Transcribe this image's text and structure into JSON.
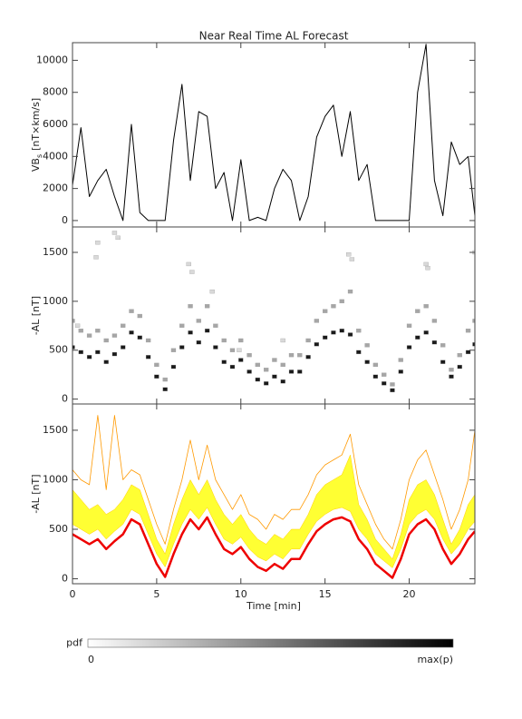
{
  "chart_data": [
    {
      "type": "line",
      "title": "Near Real Time AL Forecast",
      "ylabel": "VB",
      "ylabel_sub": "s",
      "ylabel_unit": "[nT×km/s]",
      "x": [
        0,
        0.5,
        1,
        1.5,
        2,
        2.5,
        3,
        3.5,
        4,
        4.5,
        5,
        5.5,
        6,
        6.5,
        7,
        7.5,
        8,
        8.5,
        9,
        9.5,
        10,
        10.5,
        11,
        11.5,
        12,
        12.5,
        13,
        13.5,
        14,
        14.5,
        15,
        15.5,
        16,
        16.5,
        17,
        17.5,
        18,
        18.5,
        19,
        19.5,
        20,
        20.5,
        21,
        21.5,
        22,
        22.5,
        23,
        23.5,
        23.9
      ],
      "series": [
        {
          "color": "#000000",
          "values": [
            2200,
            5800,
            1500,
            2500,
            3200,
            1500,
            0,
            6000,
            500,
            0,
            0,
            0,
            5000,
            8500,
            2500,
            6800,
            6500,
            2000,
            3000,
            0,
            3800,
            0,
            200,
            0,
            2000,
            3200,
            2500,
            0,
            1500,
            5200,
            6500,
            7200,
            4000,
            6800,
            2500,
            3500,
            0,
            0,
            0,
            0,
            0,
            8000,
            11000,
            2500,
            300,
            4900,
            3500,
            4000,
            300
          ]
        }
      ],
      "xlim": [
        0,
        23.9
      ],
      "xticks": [
        0,
        5,
        10,
        15,
        20
      ],
      "ylim": [
        -400,
        11100
      ],
      "yticks": [
        0,
        2000,
        4000,
        6000,
        8000,
        10000
      ]
    },
    {
      "type": "density",
      "ylabel": "-AL [nT]",
      "series": [
        {
          "p": 0.9,
          "x": [
            0,
            0.5,
            1,
            1.5,
            2,
            2.5,
            3,
            3.5,
            4,
            4.5,
            5,
            5.5,
            6,
            6.5,
            7,
            7.5,
            8,
            8.5,
            9,
            9.5,
            10,
            10.5,
            11,
            11.5,
            12,
            12.5,
            13,
            13.5,
            14,
            14.5,
            15,
            15.5,
            16,
            16.5,
            17,
            17.5,
            18,
            18.5,
            19,
            19.5,
            20,
            20.5,
            21,
            21.5,
            22,
            22.5,
            23,
            23.5,
            23.9
          ],
          "values": [
            530,
            480,
            430,
            480,
            380,
            460,
            530,
            680,
            630,
            430,
            230,
            100,
            330,
            530,
            680,
            580,
            700,
            530,
            380,
            330,
            400,
            280,
            200,
            160,
            230,
            180,
            280,
            280,
            430,
            560,
            630,
            680,
            700,
            660,
            480,
            380,
            230,
            160,
            90,
            280,
            530,
            630,
            680,
            580,
            380,
            230,
            330,
            480,
            560
          ]
        },
        {
          "p": 0.35,
          "x": [
            0,
            0.5,
            1,
            1.5,
            2,
            2.5,
            3,
            3.5,
            4,
            4.5,
            5,
            5.5,
            6,
            6.5,
            7,
            7.5,
            8,
            8.5,
            9,
            9.5,
            10,
            10.5,
            11,
            11.5,
            12,
            12.5,
            13,
            13.5,
            14,
            14.5,
            15,
            15.5,
            16,
            16.5,
            17,
            17.5,
            18,
            18.5,
            19,
            19.5,
            20,
            20.5,
            21,
            21.5,
            22,
            22.5,
            23,
            23.5,
            23.9
          ],
          "values": [
            800,
            700,
            650,
            700,
            600,
            650,
            750,
            900,
            850,
            600,
            350,
            200,
            500,
            750,
            950,
            800,
            950,
            750,
            600,
            500,
            600,
            450,
            350,
            300,
            400,
            350,
            450,
            450,
            600,
            800,
            900,
            950,
            1000,
            1100,
            700,
            550,
            350,
            250,
            150,
            400,
            750,
            900,
            950,
            800,
            550,
            300,
            450,
            700,
            800
          ]
        },
        {
          "p": 0.15,
          "x": [
            1.4,
            1.5,
            2.5,
            2.7,
            6.9,
            7.1,
            8.3,
            16.4,
            16.6,
            21.0,
            21.1,
            23.9,
            0.3,
            12.5,
            9.9
          ],
          "values": [
            1450,
            1600,
            1700,
            1650,
            1380,
            1300,
            1100,
            1480,
            1430,
            1380,
            1340,
            1500,
            750,
            600,
            500
          ]
        }
      ],
      "xlim": [
        0,
        23.9
      ],
      "xticks": [
        0,
        5,
        10,
        15,
        20
      ],
      "ylim": [
        -50,
        1760
      ],
      "yticks": [
        0,
        500,
        1000,
        1500
      ]
    },
    {
      "type": "band",
      "ylabel": "-AL [nT]",
      "xlabel": "Time [min]",
      "x": [
        0,
        0.5,
        1,
        1.5,
        2,
        2.5,
        3,
        3.5,
        4,
        4.5,
        5,
        5.5,
        6,
        6.5,
        7,
        7.5,
        8,
        8.5,
        9,
        9.5,
        10,
        10.5,
        11,
        11.5,
        12,
        12.5,
        13,
        13.5,
        14,
        14.5,
        15,
        15.5,
        16,
        16.5,
        17,
        17.5,
        18,
        18.5,
        19,
        19.5,
        20,
        20.5,
        21,
        21.5,
        22,
        22.5,
        23,
        23.5,
        23.9
      ],
      "series": [
        {
          "color": "#ffff33",
          "lower": [
            550,
            500,
            450,
            500,
            400,
            480,
            550,
            700,
            650,
            450,
            250,
            120,
            350,
            550,
            700,
            600,
            720,
            550,
            400,
            350,
            420,
            300,
            220,
            180,
            250,
            200,
            300,
            300,
            450,
            580,
            650,
            700,
            720,
            680,
            500,
            400,
            250,
            180,
            110,
            300,
            550,
            650,
            700,
            600,
            400,
            250,
            350,
            500,
            580
          ],
          "upper": [
            900,
            800,
            700,
            750,
            650,
            700,
            800,
            950,
            900,
            650,
            400,
            250,
            550,
            800,
            1000,
            850,
            1000,
            800,
            650,
            550,
            650,
            500,
            400,
            350,
            450,
            400,
            500,
            500,
            650,
            850,
            950,
            1000,
            1050,
            1250,
            750,
            600,
            400,
            300,
            200,
            450,
            800,
            950,
            1000,
            850,
            600,
            350,
            500,
            750,
            850
          ]
        },
        {
          "color": "#ff9900",
          "linewidth": 0.8,
          "values": [
            1100,
            1000,
            950,
            1650,
            900,
            1650,
            1000,
            1100,
            1050,
            800,
            550,
            350,
            700,
            1000,
            1400,
            1000,
            1350,
            1000,
            850,
            700,
            850,
            650,
            600,
            500,
            650,
            600,
            700,
            700,
            850,
            1050,
            1150,
            1200,
            1250,
            1460,
            950,
            750,
            550,
            400,
            300,
            600,
            1000,
            1200,
            1300,
            1050,
            800,
            500,
            700,
            1000,
            1500
          ]
        },
        {
          "color": "#ee0000",
          "linewidth": 2.5,
          "values": [
            450,
            400,
            350,
            400,
            300,
            380,
            450,
            600,
            550,
            350,
            150,
            20,
            250,
            450,
            600,
            500,
            620,
            450,
            300,
            250,
            320,
            200,
            120,
            80,
            150,
            100,
            200,
            200,
            350,
            480,
            550,
            600,
            620,
            580,
            400,
            300,
            150,
            80,
            10,
            200,
            450,
            550,
            600,
            500,
            300,
            150,
            250,
            400,
            480
          ]
        }
      ],
      "xlim": [
        0,
        23.9
      ],
      "xticks": [
        0,
        5,
        10,
        15,
        20
      ],
      "ylim": [
        -50,
        1765
      ],
      "yticks": [
        0,
        500,
        1000,
        1500
      ]
    }
  ],
  "colorbar": {
    "label": "pdf",
    "colors": [
      "#ffffff",
      "#000000"
    ],
    "range": [
      0,
      1
    ],
    "ticks": [
      0,
      {
        "value": 1,
        "label": "max(p)"
      }
    ]
  }
}
